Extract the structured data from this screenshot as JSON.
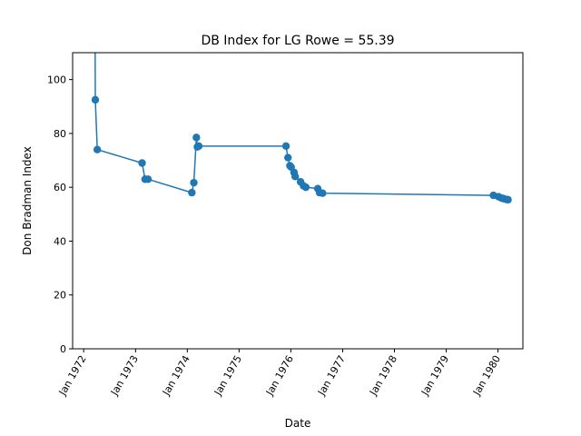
{
  "chart_data": {
    "type": "line",
    "title": "DB Index for LG Rowe = 55.39",
    "xlabel": "Date",
    "ylabel": "Don Bradman Index",
    "ylim": [
      0,
      110
    ],
    "xlim": [
      "1971-10-15",
      "1980-06-25"
    ],
    "yticks": [
      0,
      20,
      40,
      60,
      80,
      100
    ],
    "xticks": [
      {
        "date": "1972-01-01",
        "label": "Jan 1972"
      },
      {
        "date": "1973-01-01",
        "label": "Jan 1973"
      },
      {
        "date": "1974-01-01",
        "label": "Jan 1974"
      },
      {
        "date": "1975-01-01",
        "label": "Jan 1975"
      },
      {
        "date": "1976-01-01",
        "label": "Jan 1976"
      },
      {
        "date": "1977-01-01",
        "label": "Jan 1977"
      },
      {
        "date": "1978-01-01",
        "label": "Jan 1978"
      },
      {
        "date": "1979-01-01",
        "label": "Jan 1979"
      },
      {
        "date": "1980-01-01",
        "label": "Jan 1980"
      }
    ],
    "grid": false,
    "line_color": "#1f77b4",
    "series": [
      {
        "points": [
          {
            "x": "1972-03-16",
            "y": 214
          },
          {
            "x": "1972-03-23",
            "y": 92.5
          },
          {
            "x": "1972-04-06",
            "y": 74
          },
          {
            "x": "1973-02-16",
            "y": 69
          },
          {
            "x": "1973-03-09",
            "y": 63
          },
          {
            "x": "1973-03-30",
            "y": 63
          },
          {
            "x": "1974-02-02",
            "y": 58
          },
          {
            "x": "1974-02-16",
            "y": 61.7
          },
          {
            "x": "1974-03-06",
            "y": 78.5
          },
          {
            "x": "1974-03-13",
            "y": 75
          },
          {
            "x": "1974-03-23",
            "y": 75.3
          },
          {
            "x": "1975-11-28",
            "y": 75.3
          },
          {
            "x": "1975-12-12",
            "y": 71
          },
          {
            "x": "1975-12-26",
            "y": 68
          },
          {
            "x": "1976-01-03",
            "y": 67.5
          },
          {
            "x": "1976-01-24",
            "y": 65.5
          },
          {
            "x": "1976-02-01",
            "y": 64
          },
          {
            "x": "1976-03-10",
            "y": 62
          },
          {
            "x": "1976-03-31",
            "y": 60.5
          },
          {
            "x": "1976-04-16",
            "y": 60
          },
          {
            "x": "1976-07-09",
            "y": 59.5
          },
          {
            "x": "1976-07-22",
            "y": 58
          },
          {
            "x": "1976-08-12",
            "y": 57.8
          },
          {
            "x": "1979-11-30",
            "y": 57
          },
          {
            "x": "1980-01-05",
            "y": 56.5
          },
          {
            "x": "1980-01-26",
            "y": 56
          },
          {
            "x": "1980-02-09",
            "y": 55.8
          },
          {
            "x": "1980-02-29",
            "y": 55.5
          },
          {
            "x": "1980-03-12",
            "y": 55.39
          }
        ]
      }
    ]
  }
}
